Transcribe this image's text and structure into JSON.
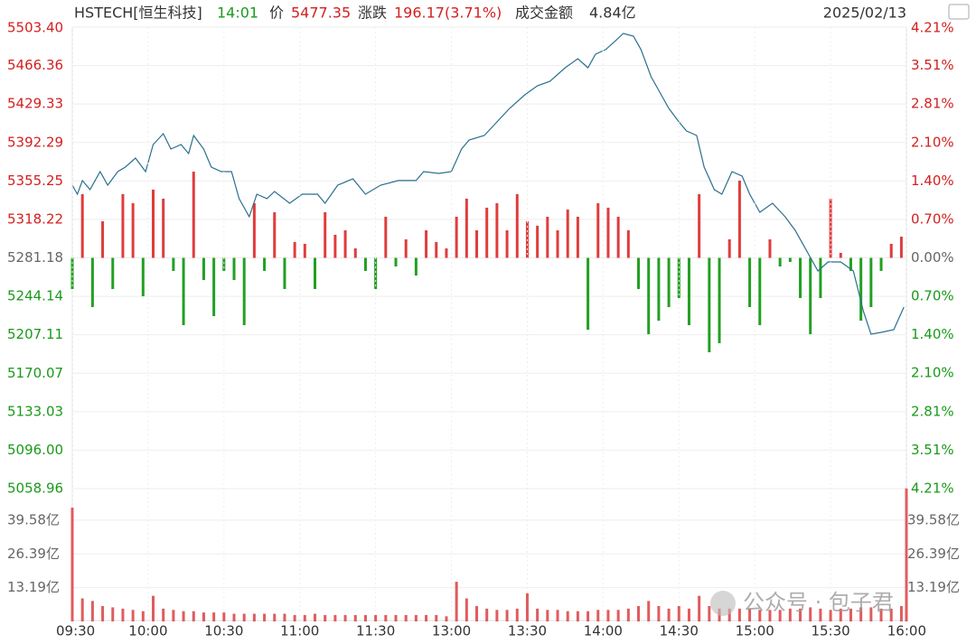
{
  "header": {
    "symbol": "HSTECH[恒生科技]",
    "time": "14:01",
    "price_label": "价",
    "price": "5477.35",
    "change_label": "涨跌",
    "change": "196.17(3.71%)",
    "turnover_label": "成交金额",
    "turnover": "4.84亿",
    "date": "2025/02/13"
  },
  "watermark": "公众号 · 包子君",
  "chart_data": [
    {
      "type": "line",
      "color": "#2a6f8f",
      "x": [
        0,
        2,
        4,
        7,
        11,
        14,
        18,
        21,
        25,
        29,
        32,
        36,
        39,
        43,
        46,
        48,
        52,
        55,
        59,
        63,
        66,
        70,
        73,
        77,
        80,
        86,
        91,
        97,
        100,
        105,
        111,
        116,
        122,
        129,
        136,
        139,
        145,
        150,
        154,
        157,
        163,
        168,
        173,
        179,
        184,
        189,
        195,
        200,
        204,
        207,
        211,
        215,
        218,
        222,
        225,
        229,
        232,
        236,
        240,
        243,
        247,
        250,
        254,
        257,
        261,
        265,
        268,
        272,
        277,
        282,
        286,
        291,
        295,
        299,
        304,
        309,
        313,
        316,
        320,
        325,
        329
      ],
      "values": [
        5351.2,
        5342.5,
        5355.6,
        5346.9,
        5364.2,
        5351.2,
        5364.2,
        5368.6,
        5377.3,
        5364.2,
        5390.3,
        5400.8,
        5386.0,
        5390.3,
        5381.6,
        5399.0,
        5386.0,
        5368.6,
        5364.2,
        5364.2,
        5338.2,
        5320.8,
        5342.5,
        5338.2,
        5345.1,
        5333.8,
        5342.5,
        5342.5,
        5333.8,
        5351.2,
        5357.3,
        5342.5,
        5351.2,
        5355.6,
        5355.6,
        5364.2,
        5362.5,
        5364.2,
        5386.0,
        5394.7,
        5399.0,
        5412.1,
        5425.1,
        5438.2,
        5446.9,
        5451.2,
        5464.3,
        5473.0,
        5464.3,
        5477.3,
        5481.7,
        5490.4,
        5497.3,
        5494.7,
        5481.7,
        5455.6,
        5442.5,
        5425.1,
        5412.1,
        5403.4,
        5399.0,
        5368.6,
        5346.9,
        5342.5,
        5364.2,
        5359.9,
        5342.5,
        5325.1,
        5333.8,
        5320.8,
        5307.7,
        5286.0,
        5268.6,
        5277.3,
        5277.3,
        5268.6,
        5229.4,
        5207.7,
        5209.4,
        5212.0,
        5233.8
      ],
      "bars": {
        "up_color": "#e03c3c",
        "down_color": "#22a022",
        "baseline": 5281.18,
        "x": [
          0,
          4,
          8,
          12,
          16,
          20,
          24,
          28,
          32,
          36,
          40,
          44,
          48,
          52,
          56,
          60,
          64,
          68,
          72,
          76,
          80,
          84,
          88,
          92,
          96,
          100,
          104,
          108,
          112,
          116,
          120,
          124,
          128,
          132,
          136,
          140,
          144,
          148,
          152,
          156,
          160,
          164,
          168,
          172,
          176,
          180,
          184,
          188,
          192,
          196,
          200,
          204,
          208,
          212,
          216,
          220,
          224,
          228,
          232,
          236,
          240,
          244,
          248,
          252,
          256,
          260,
          264,
          268,
          272,
          276,
          280,
          284,
          288,
          292,
          296,
          300,
          304,
          308,
          312,
          316,
          320,
          324,
          328
        ],
        "values": [
          5251.2,
          5342.5,
          5233.8,
          5316.4,
          5251.2,
          5342.5,
          5333.8,
          5244.2,
          5346.9,
          5338.2,
          5268.6,
          5216.4,
          5364.2,
          5259.9,
          5225.1,
          5268.6,
          5259.9,
          5216.4,
          5333.8,
          5268.6,
          5325.1,
          5251.2,
          5296.4,
          5294.7,
          5251.2,
          5325.1,
          5303.4,
          5307.7,
          5290.3,
          5268.6,
          5251.2,
          5320.8,
          5272.9,
          5299.0,
          5264.2,
          5307.7,
          5296.4,
          5290.3,
          5320.8,
          5338.2,
          5307.7,
          5329.5,
          5333.8,
          5307.7,
          5342.5,
          5316.4,
          5312.1,
          5320.8,
          5307.7,
          5327.7,
          5320.8,
          5212.0,
          5333.8,
          5329.5,
          5320.8,
          5307.7,
          5251.2,
          5207.7,
          5220.7,
          5233.8,
          5242.5,
          5216.4,
          5342.5,
          5190.3,
          5199.0,
          5299.0,
          5355.6,
          5233.8,
          5216.4,
          5299.0,
          5272.9,
          5277.3,
          5242.5,
          5207.7,
          5242.5,
          5338.2,
          5286.0,
          5268.6,
          5220.7,
          5233.8,
          5268.6,
          5294.7,
          5301.6
        ]
      },
      "xlim": [
        0,
        330
      ],
      "ylim": [
        5058.96,
        5503.4
      ],
      "yticks": [
        {
          "value": 5503.4,
          "label": "5503.40"
        },
        {
          "value": 5466.36,
          "label": "5466.36"
        },
        {
          "value": 5429.33,
          "label": "5429.33"
        },
        {
          "value": 5392.29,
          "label": "5392.29"
        },
        {
          "value": 5355.25,
          "label": "5355.25"
        },
        {
          "value": 5318.22,
          "label": "5318.22"
        },
        {
          "value": 5281.18,
          "label": "5281.18"
        },
        {
          "value": 5244.14,
          "label": "5244.14"
        },
        {
          "value": 5207.11,
          "label": "5207.11"
        },
        {
          "value": 5170.07,
          "label": "5170.07"
        },
        {
          "value": 5133.03,
          "label": "5133.03"
        },
        {
          "value": 5096.0,
          "label": "5096.00"
        },
        {
          "value": 5058.96,
          "label": "5058.96"
        }
      ],
      "y2lim": [
        -4.21,
        4.21
      ],
      "y2ticks": [
        {
          "value": 4.21,
          "label": "4.21%"
        },
        {
          "value": 3.51,
          "label": "3.51%"
        },
        {
          "value": 2.81,
          "label": "2.81%"
        },
        {
          "value": 2.1,
          "label": "2.10%"
        },
        {
          "value": 1.4,
          "label": "1.40%"
        },
        {
          "value": 0.7,
          "label": "0.70%"
        },
        {
          "value": 0,
          "label": "0.00%"
        },
        {
          "value": -0.7,
          "label": "0.70%"
        },
        {
          "value": -1.4,
          "label": "1.40%"
        },
        {
          "value": -2.1,
          "label": "2.10%"
        },
        {
          "value": -2.81,
          "label": "2.81%"
        },
        {
          "value": -3.51,
          "label": "3.51%"
        },
        {
          "value": -4.21,
          "label": "4.21%"
        }
      ],
      "grid": true
    },
    {
      "type": "bar",
      "color": "#e05c5c",
      "x": [
        0,
        4,
        8,
        12,
        16,
        20,
        24,
        28,
        32,
        36,
        40,
        44,
        48,
        52,
        56,
        60,
        64,
        68,
        72,
        76,
        80,
        84,
        88,
        92,
        96,
        100,
        104,
        108,
        112,
        116,
        120,
        124,
        128,
        132,
        136,
        140,
        144,
        148,
        152,
        156,
        160,
        164,
        168,
        172,
        176,
        180,
        184,
        188,
        192,
        196,
        200,
        204,
        208,
        212,
        216,
        220,
        224,
        228,
        232,
        236,
        240,
        244,
        248,
        252,
        256,
        260,
        264,
        268,
        272,
        276,
        280,
        284,
        288,
        292,
        296,
        300,
        304,
        308,
        312,
        316,
        320,
        324,
        328,
        330
      ],
      "values": [
        44.5,
        9,
        8,
        6,
        5.5,
        5,
        4.5,
        4,
        10,
        5,
        4.5,
        4,
        4,
        3.5,
        3.5,
        3.5,
        3,
        3,
        3,
        3,
        3,
        3,
        2.5,
        2.5,
        3,
        2.5,
        2.5,
        2.5,
        2.5,
        2.5,
        2.5,
        2.5,
        2.5,
        2.5,
        2.5,
        2.5,
        2.5,
        2,
        15.5,
        9,
        6,
        5,
        4.5,
        4.5,
        5,
        11,
        5,
        4.5,
        4.5,
        4,
        4,
        4,
        4.5,
        4.5,
        4.5,
        5,
        6,
        8,
        6,
        5,
        6,
        5,
        10,
        6,
        5,
        5,
        5,
        5,
        4.5,
        4.5,
        4.5,
        5,
        5,
        5.5,
        5,
        4.5,
        5,
        5,
        5.5,
        5.5,
        5,
        5,
        6,
        52
      ],
      "xlim": [
        0,
        330
      ],
      "ylim": [
        0,
        51.9
      ],
      "yticks": [
        {
          "value": 39.58,
          "label": "39.58亿"
        },
        {
          "value": 26.39,
          "label": "26.39亿"
        },
        {
          "value": 13.19,
          "label": "13.19亿"
        }
      ],
      "xticks": [
        {
          "value": 0,
          "label": "09:30"
        },
        {
          "value": 30,
          "label": "10:00"
        },
        {
          "value": 60,
          "label": "10:30"
        },
        {
          "value": 90,
          "label": "11:00"
        },
        {
          "value": 120,
          "label": "11:30"
        },
        {
          "value": 150,
          "label": "13:00"
        },
        {
          "value": 180,
          "label": "13:30"
        },
        {
          "value": 210,
          "label": "14:00"
        },
        {
          "value": 240,
          "label": "14:30"
        },
        {
          "value": 270,
          "label": "15:00"
        },
        {
          "value": 300,
          "label": "15:30"
        },
        {
          "value": 330,
          "label": "16:00"
        }
      ],
      "grid": true
    }
  ]
}
